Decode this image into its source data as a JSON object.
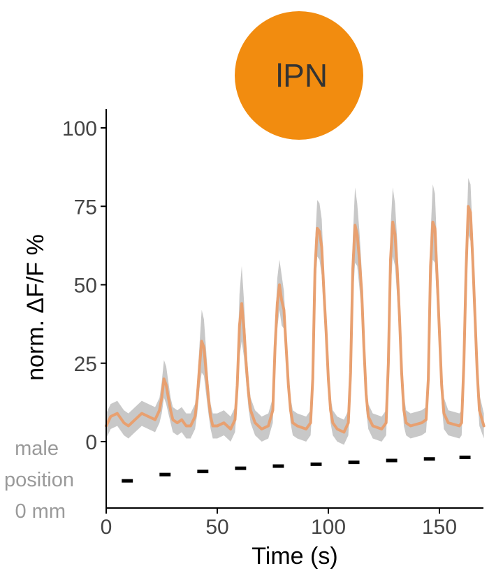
{
  "badge": {
    "label": "lPN",
    "color": "#F28C0F"
  },
  "side_legend": {
    "lines": [
      "male",
      "position",
      "0 mm"
    ]
  },
  "chart_data": {
    "type": "line",
    "xlabel": "Time (s)",
    "ylabel": "norm. ΔF/F %",
    "xlim": [
      0,
      170
    ],
    "ylim": [
      -17,
      105
    ],
    "xticks": [
      0,
      50,
      100,
      150
    ],
    "yticks": [
      0,
      25,
      50,
      75,
      100
    ],
    "grid": false,
    "series": [
      {
        "line_color": "#E8A070",
        "band_color": "#C8C8C8",
        "x": [
          0,
          2,
          5,
          8,
          10,
          13,
          16,
          19,
          22,
          24,
          25,
          26,
          27,
          28,
          29,
          30,
          32,
          34,
          36,
          38,
          40,
          41,
          42,
          43,
          44,
          45,
          46,
          47,
          48,
          50,
          53,
          56,
          58,
          59,
          60,
          61,
          62,
          63,
          64,
          65,
          67,
          70,
          73,
          75,
          76,
          77,
          78,
          79,
          80,
          81,
          82,
          83,
          84,
          86,
          90,
          92,
          93,
          94,
          95,
          96,
          97,
          98,
          99,
          100,
          101,
          102,
          104,
          107,
          109,
          110,
          111,
          112,
          113,
          114,
          115,
          116,
          117,
          118,
          120,
          124,
          126,
          127,
          128,
          129,
          130,
          131,
          132,
          133,
          134,
          135,
          137,
          142,
          144,
          145,
          146,
          147,
          148,
          149,
          150,
          151,
          152,
          154,
          159,
          160,
          161,
          162,
          163,
          164,
          165,
          166,
          167,
          168,
          170
        ],
        "y": [
          5,
          8,
          9,
          6,
          5,
          7,
          9,
          8,
          7,
          10,
          14,
          20,
          18,
          14,
          10,
          7,
          6,
          7,
          5,
          5,
          8,
          14,
          24,
          32,
          30,
          22,
          14,
          8,
          5,
          5,
          6,
          4,
          7,
          18,
          37,
          44,
          36,
          25,
          16,
          10,
          6,
          4,
          5,
          10,
          30,
          44,
          50,
          45,
          42,
          30,
          18,
          10,
          6,
          5,
          4,
          6,
          20,
          55,
          68,
          67,
          62,
          48,
          35,
          20,
          10,
          6,
          4,
          3,
          6,
          22,
          55,
          69,
          66,
          58,
          48,
          30,
          15,
          8,
          5,
          4,
          6,
          25,
          58,
          70,
          66,
          55,
          40,
          22,
          10,
          6,
          5,
          6,
          7,
          20,
          56,
          70,
          68,
          52,
          35,
          18,
          9,
          6,
          5,
          6,
          25,
          55,
          75,
          73,
          58,
          40,
          22,
          10,
          5
        ],
        "band_halfwidth": [
          4,
          4,
          4,
          4,
          4,
          4,
          4,
          4,
          4,
          4,
          5,
          6,
          6,
          5,
          4,
          4,
          4,
          4,
          4,
          4,
          4,
          5,
          7,
          10,
          9,
          7,
          5,
          4,
          4,
          4,
          4,
          4,
          4,
          6,
          10,
          12,
          9,
          6,
          5,
          4,
          4,
          4,
          4,
          4,
          6,
          8,
          8,
          8,
          6,
          5,
          4,
          4,
          4,
          4,
          4,
          4,
          6,
          8,
          9,
          9,
          9,
          7,
          6,
          5,
          4,
          4,
          4,
          4,
          4,
          6,
          10,
          12,
          10,
          9,
          7,
          6,
          5,
          4,
          4,
          4,
          4,
          6,
          10,
          11,
          10,
          9,
          7,
          6,
          5,
          4,
          4,
          4,
          4,
          6,
          10,
          12,
          11,
          9,
          7,
          6,
          5,
          4,
          4,
          4,
          6,
          8,
          9,
          9,
          8,
          7,
          6,
          5,
          4
        ]
      }
    ],
    "stimulus_markers": {
      "color": "#000000",
      "segments": [
        {
          "x0": 7,
          "x1": 12,
          "y": -12.5
        },
        {
          "x0": 24,
          "x1": 29,
          "y": -10.5
        },
        {
          "x0": 41,
          "x1": 46,
          "y": -9.5
        },
        {
          "x0": 58,
          "x1": 63,
          "y": -8.5
        },
        {
          "x0": 75,
          "x1": 80,
          "y": -7.8
        },
        {
          "x0": 92,
          "x1": 97,
          "y": -7.2
        },
        {
          "x0": 109,
          "x1": 114,
          "y": -6.6
        },
        {
          "x0": 126,
          "x1": 131,
          "y": -6.0
        },
        {
          "x0": 143,
          "x1": 148,
          "y": -5.5
        },
        {
          "x0": 159,
          "x1": 164,
          "y": -5.0
        }
      ]
    }
  }
}
